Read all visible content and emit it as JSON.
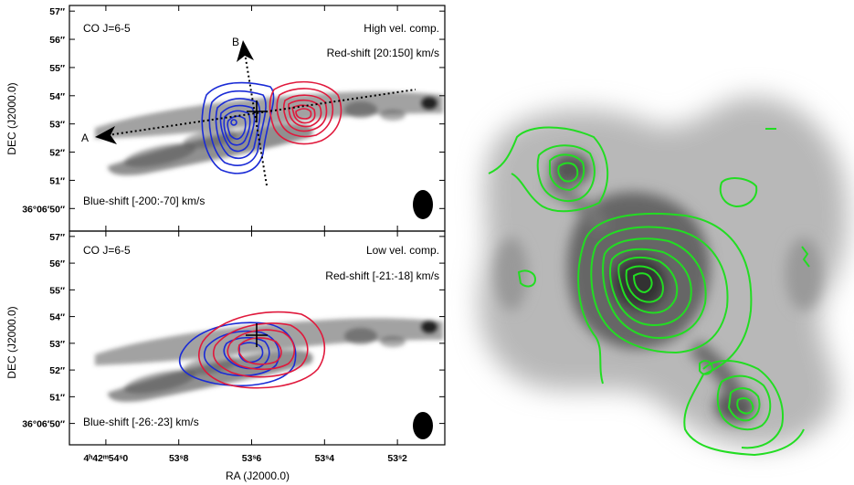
{
  "colors": {
    "blue": "#1a2bd6",
    "red": "#e0193c",
    "green": "#22dd22",
    "frame": "#000000"
  },
  "axes": {
    "ylabel": "DEC  (J2000.0)",
    "xlabel": "RA  (J2000.0)",
    "xticks": [
      "4ʰ42ᵐ54ˢ0",
      "53ˢ8",
      "53ˢ6",
      "53ˢ4",
      "53ˢ2"
    ],
    "yticks": [
      "57″",
      "56″",
      "55″",
      "54″",
      "53″",
      "52″",
      "51″",
      "36°06′50″"
    ]
  },
  "panels": [
    {
      "molecule": "CO J=6-5",
      "component": "High vel. comp.",
      "red_label": "Red-shift [20:150] km/s",
      "blue_label": "Blue-shift [-200:-70] km/s",
      "axis_a": "A",
      "axis_b": "B"
    },
    {
      "molecule": "CO J=6-5",
      "component": "Low vel. comp.",
      "red_label": "Red-shift [-21:-18] km/s",
      "blue_label": "Blue-shift [-26:-23] km/s"
    }
  ],
  "chart_data": {
    "type": "contour",
    "x_tick_values_s": [
      54.0,
      53.8,
      53.6,
      53.4,
      53.2
    ],
    "y_tick_values_arcsec": [
      57,
      56,
      55,
      54,
      53,
      52,
      51,
      50
    ],
    "xlim_s": [
      54.1,
      53.07
    ],
    "ylim_arcsec": [
      49.2,
      57.2
    ]
  }
}
